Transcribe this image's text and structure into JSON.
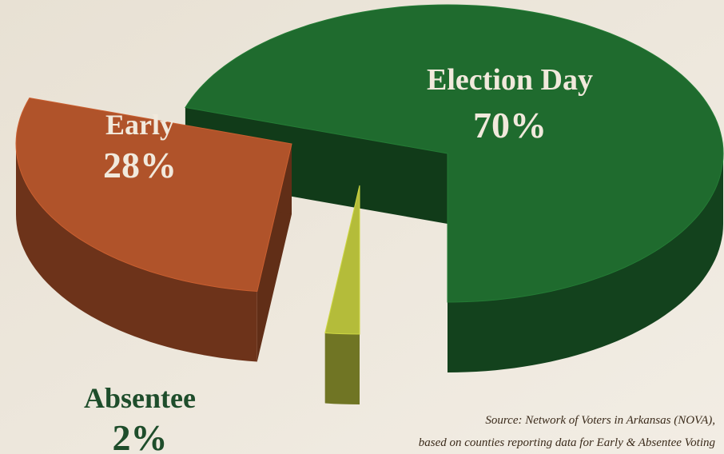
{
  "chart_data": {
    "type": "pie",
    "categories": [
      "Election Day",
      "Early",
      "Absentee"
    ],
    "values": [
      70,
      28,
      2
    ],
    "value_labels": [
      "70%",
      "28%",
      "2%"
    ],
    "colors": [
      "#1f6b2e",
      "#b0532a",
      "#b4bc3a"
    ],
    "source": [
      "Source: Network of Voters in Arkansas (NOVA),",
      "based on counties reporting data for Early & Absentee Voting"
    ]
  }
}
